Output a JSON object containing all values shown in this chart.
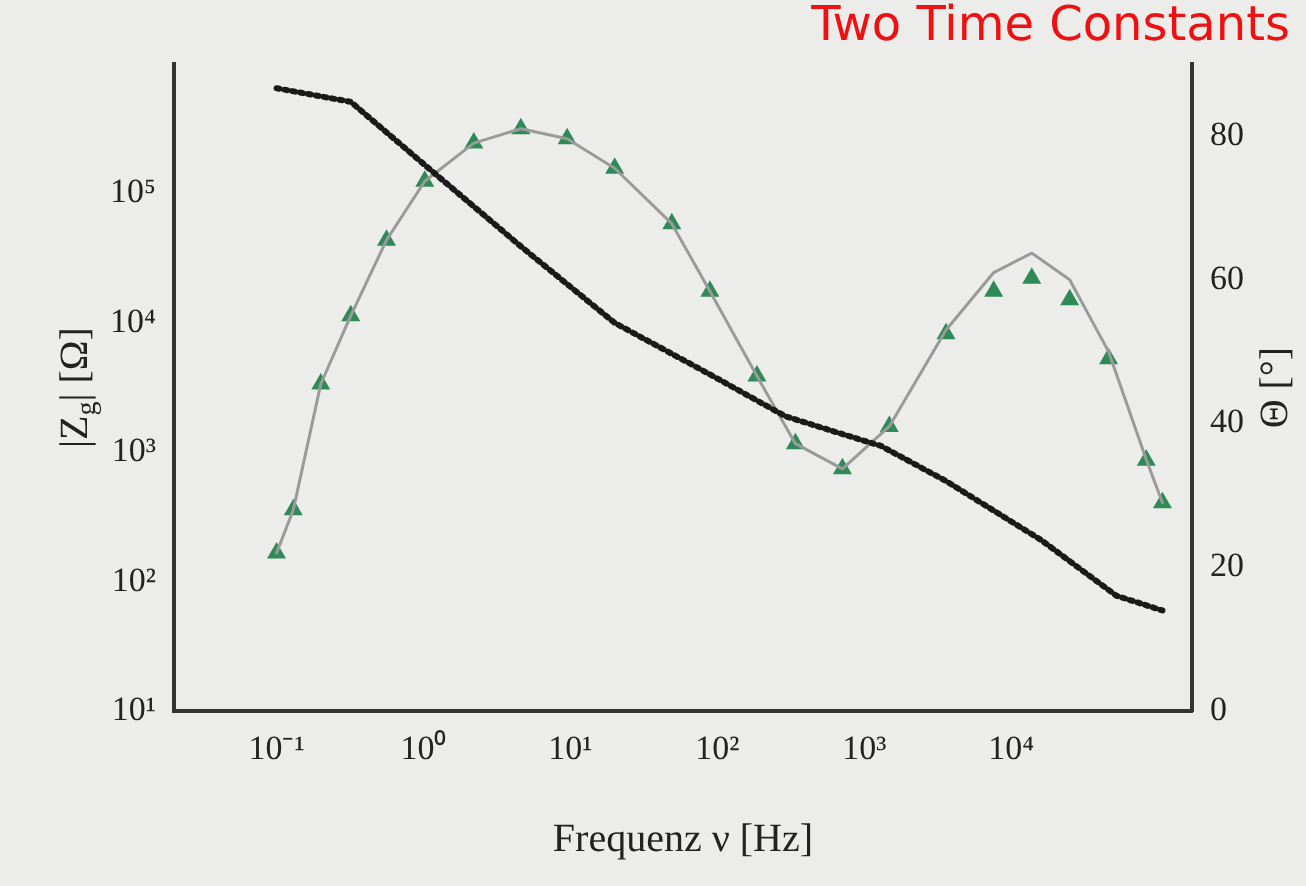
{
  "chart_data": {
    "type": "line",
    "title": "Two Time Constants",
    "xlabel": "Frequenz ν [Hz]",
    "ylabel": "|Z$_{g}$| [Ω]",
    "y2label": "Θ [°]",
    "log": "xy",
    "grid": false,
    "legend": false,
    "xlim": [
      0.02,
      170000
    ],
    "xticks": [
      {
        "value": 0.1,
        "label": "10⁻¹"
      },
      {
        "value": 1,
        "label": "10⁰"
      },
      {
        "value": 10,
        "label": "10¹"
      },
      {
        "value": 100,
        "label": "10²"
      },
      {
        "value": 1000,
        "label": "10³"
      },
      {
        "value": 10000,
        "label": "10⁴"
      }
    ],
    "ylim": [
      10,
      1000000
    ],
    "yticks": [
      {
        "value": 10,
        "label": "10¹"
      },
      {
        "value": 100,
        "label": "10²"
      },
      {
        "value": 1000,
        "label": "10³"
      },
      {
        "value": 10000,
        "label": "10⁴"
      },
      {
        "value": 100000,
        "label": "10⁵"
      }
    ],
    "y2lim": [
      0,
      90
    ],
    "y2ticks": [
      0,
      20,
      40,
      60,
      80
    ],
    "series": [
      {
        "type": "line",
        "color": "#1a1a1a",
        "line_style": "dotted",
        "marker": "none",
        "x": [
          0.1,
          0.32,
          1.02,
          4.6,
          20,
          89,
          290,
          620,
          1300,
          3600,
          16000,
          52000,
          107000
        ],
        "values": [
          650000,
          510000,
          166000,
          39000,
          10000,
          4000,
          1900,
          1450,
          1120,
          600,
          210,
          78,
          60
        ]
      },
      {
        "type": "line",
        "color": "#9a9a9a",
        "line_style": "solid",
        "marker": "none",
        "axis": "y2",
        "x": [
          0.1,
          0.13,
          0.2,
          0.32,
          0.56,
          1.02,
          2.2,
          4.6,
          9.5,
          20,
          49,
          89,
          186,
          340,
          710,
          1480,
          3600,
          7600,
          13800,
          25000,
          46000,
          83000,
          107000
        ],
        "values": [
          22,
          28,
          45.5,
          55,
          65.5,
          73.7,
          79,
          81,
          79.6,
          75.5,
          67.8,
          58.4,
          46.6,
          37.2,
          33.7,
          39.6,
          53,
          61,
          63.7,
          60,
          50,
          35,
          29
        ]
      },
      {
        "type": "scatter",
        "color": "#2e8b57",
        "marker": "triangle",
        "axis": "y2",
        "x": [
          0.1,
          0.13,
          0.2,
          0.32,
          0.56,
          1.02,
          2.2,
          4.6,
          9.5,
          20,
          49,
          89,
          186,
          340,
          710,
          1480,
          3600,
          7600,
          13800,
          25000,
          46000,
          83000,
          107000
        ],
        "values": [
          22,
          28,
          45.5,
          55,
          65.5,
          73.7,
          79,
          81,
          79.6,
          75.5,
          67.8,
          58.4,
          46.6,
          37.2,
          33.7,
          39.6,
          52.5,
          58.4,
          60.2,
          57.2,
          49,
          34.9,
          29
        ]
      }
    ]
  }
}
